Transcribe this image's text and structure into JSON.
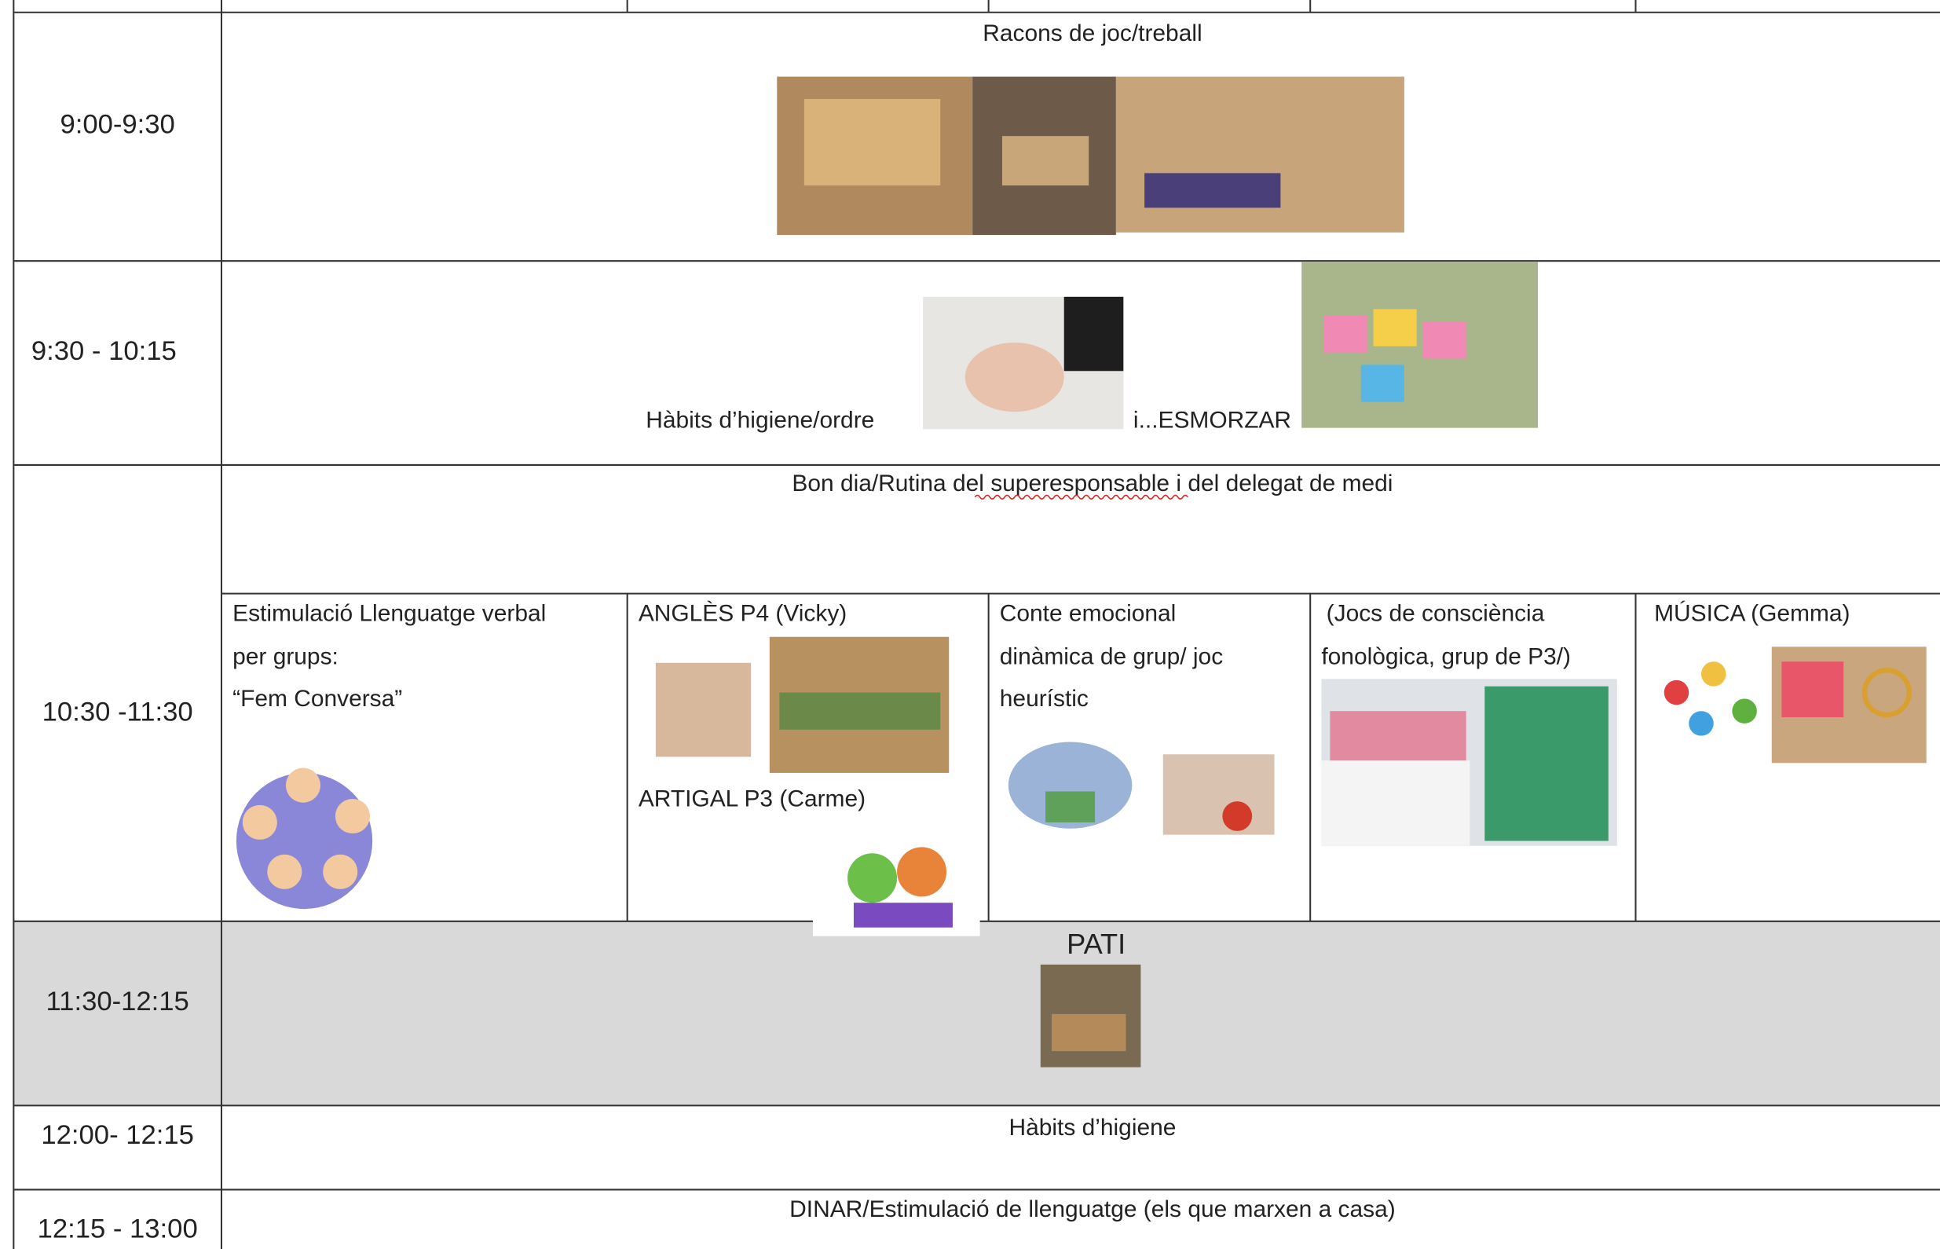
{
  "schedule": {
    "rows": [
      {
        "time": "9:00-9:30",
        "text": "Racons de joc/treball"
      },
      {
        "time": "9:30 - 10:15",
        "text": "Hàbits d’higiene/ordre",
        "text2": "i...ESMORZAR"
      },
      {
        "time": "10:30 -11:30",
        "text": "Bon dia/Rutina del superesponsable i del delegat de medi",
        "groups": [
          {
            "lines": [
              "Estimulació Llenguatge verbal",
              "per grups:",
              "“Fem Conversa”"
            ]
          },
          {
            "lines": [
              "ANGLÈS P4 (Vicky)"
            ],
            "text2": "ARTIGAL P3 (Carme)"
          },
          {
            "lines": [
              "Conte emocional",
              "dinàmica de grup/ joc",
              "heurístic"
            ]
          },
          {
            "lines": [
              "(Jocs de consciència",
              "fonològica, grup de P3/)"
            ]
          },
          {
            "lines": [
              "MÚSICA  (Gemma)"
            ]
          }
        ]
      },
      {
        "time": "11:30-12:15",
        "text": "PATI"
      },
      {
        "time": "12:00- 12:15",
        "text": "Hàbits d’higiene"
      },
      {
        "time": "12:15 - 13:00",
        "text": "DINAR/Estimulació de llenguatge (els que marxen a casa)"
      }
    ]
  }
}
